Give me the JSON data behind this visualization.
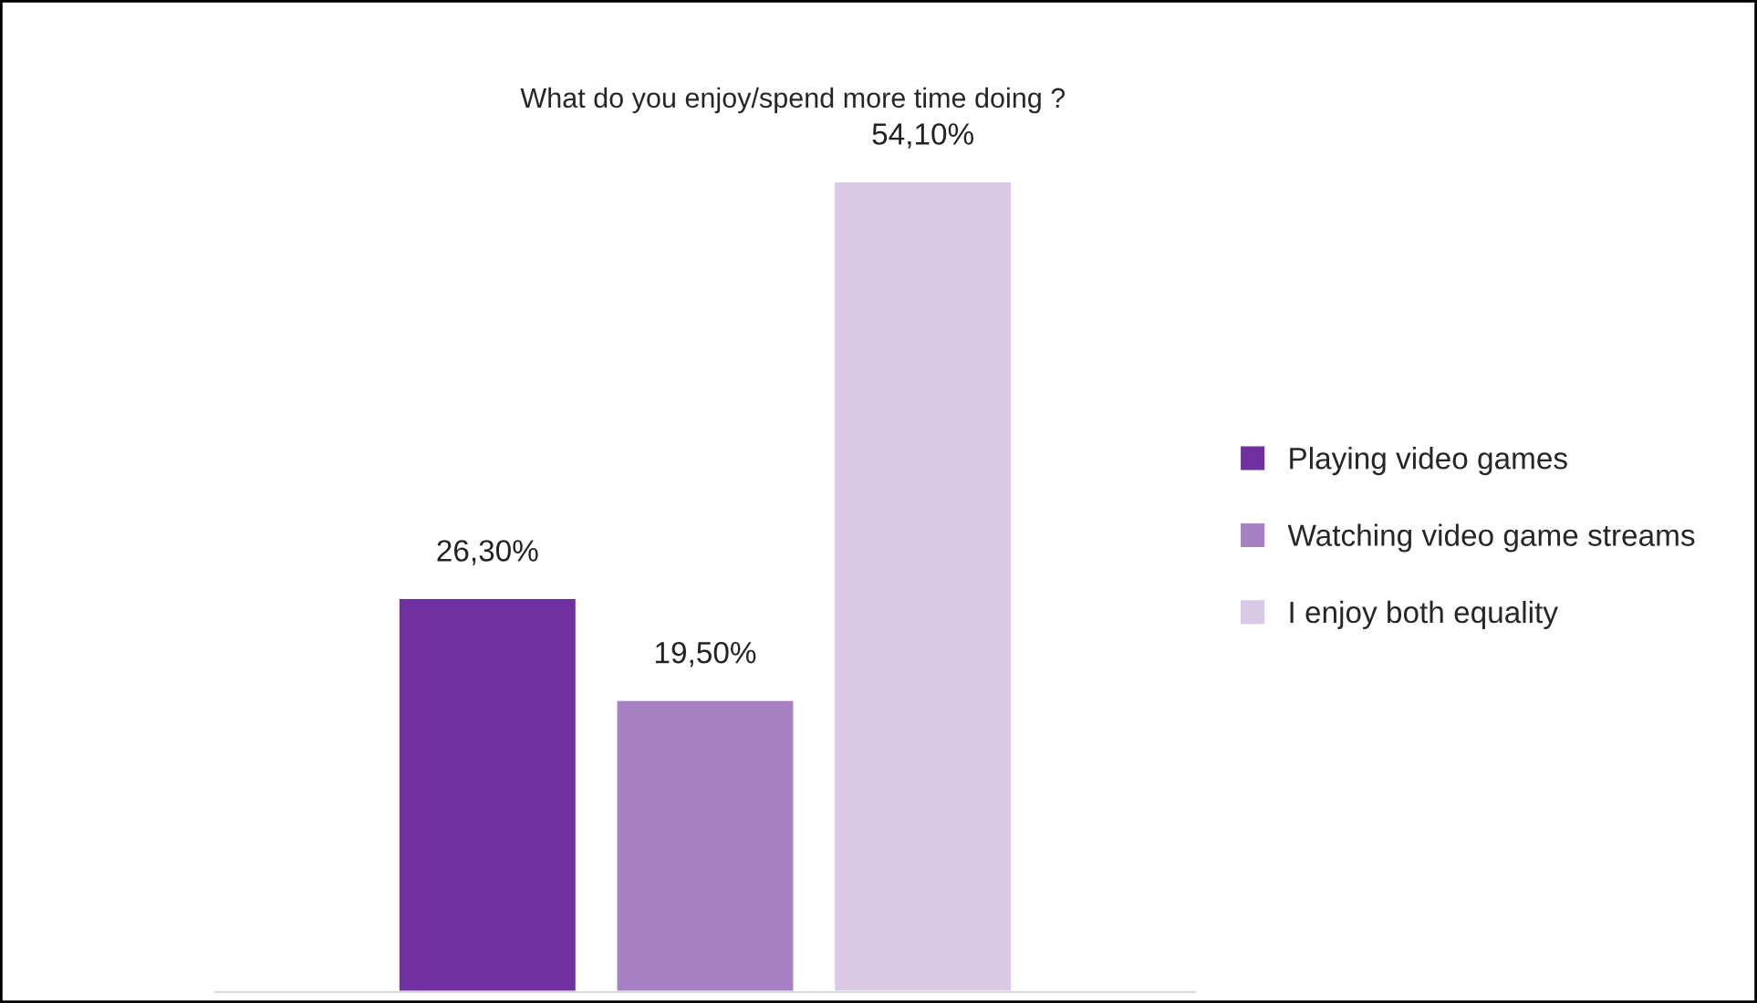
{
  "chart_data": {
    "type": "bar",
    "title": "What do you enjoy/spend more time doing ?",
    "categories": [
      null
    ],
    "series": [
      {
        "name": "Playing video games",
        "color": "#7030a0",
        "values": [
          26.3
        ],
        "value_labels": [
          "26,30%"
        ]
      },
      {
        "name": "Watching video game streams",
        "color": "#a881c5",
        "values": [
          19.5
        ],
        "value_labels": [
          "19,50%"
        ]
      },
      {
        "name": "I enjoy both equality",
        "color": "#d9c9e4",
        "values": [
          54.1
        ],
        "value_labels": [
          "54,10%"
        ]
      }
    ],
    "legend": "right",
    "grid": false
  }
}
